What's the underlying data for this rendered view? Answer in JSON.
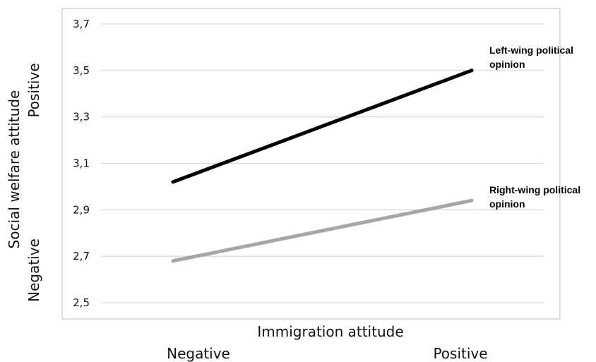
{
  "chart_data": {
    "type": "line",
    "x_title": "Immigration attitude",
    "x": [
      "Negative",
      "Positive"
    ],
    "y_title": "Social welfare attitude",
    "y_pole_positive": "Positive",
    "y_pole_negative": "Negative",
    "y_ticks": [
      "3,7",
      "3,5",
      "3,3",
      "3,1",
      "2,9",
      "2,7",
      "2,5"
    ],
    "ylim": [
      2.5,
      3.7
    ],
    "grid": true,
    "series": [
      {
        "name": "Left-wing political opinion",
        "label_lines": [
          "Left-wing political",
          "opinion"
        ],
        "values": [
          3.02,
          3.5
        ],
        "color": "#000000"
      },
      {
        "name": "Right-wing political opinion",
        "label_lines": [
          "Right-wing political",
          "opinion"
        ],
        "values": [
          2.68,
          2.94
        ],
        "color": "#a6a6a6"
      }
    ]
  }
}
